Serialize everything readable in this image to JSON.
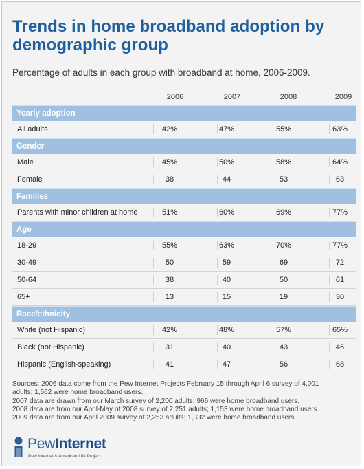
{
  "title": "Trends in home broadband adoption by demographic group",
  "subtitle": "Percentage of adults in each group with broadband at home, 2006-2009.",
  "chart_data": {
    "type": "table",
    "columns": [
      "2006",
      "2007",
      "2008",
      "2009"
    ],
    "sections": [
      {
        "heading": "Yearly adoption",
        "rows": [
          {
            "label": "All adults",
            "values": [
              "42%",
              "47%",
              "55%",
              "63%"
            ]
          }
        ]
      },
      {
        "heading": "Gender",
        "rows": [
          {
            "label": "Male",
            "values": [
              "45%",
              "50%",
              "58%",
              "64%"
            ]
          },
          {
            "label": "Female",
            "values": [
              "38",
              "44",
              "53",
              "63"
            ]
          }
        ]
      },
      {
        "heading": "Families",
        "rows": [
          {
            "label": "Parents with minor children at home",
            "values": [
              "51%",
              "60%",
              "69%",
              "77%"
            ]
          }
        ]
      },
      {
        "heading": "Age",
        "rows": [
          {
            "label": "18-29",
            "values": [
              "55%",
              "63%",
              "70%",
              "77%"
            ]
          },
          {
            "label": "30-49",
            "values": [
              "50",
              "59",
              "69",
              "72"
            ]
          },
          {
            "label": "50-64",
            "values": [
              "38",
              "40",
              "50",
              "61"
            ]
          },
          {
            "label": "65+",
            "values": [
              "13",
              "15",
              "19",
              "30"
            ]
          }
        ]
      },
      {
        "heading": "Race/ethnicity",
        "rows": [
          {
            "label": "White (not Hispanic)",
            "values": [
              "42%",
              "48%",
              "57%",
              "65%"
            ]
          },
          {
            "label": "Black (not Hispanic)",
            "values": [
              "31",
              "40",
              "43",
              "46"
            ]
          },
          {
            "label": "Hispanic (English-speaking)",
            "values": [
              "41",
              "47",
              "56",
              "68"
            ]
          }
        ]
      }
    ]
  },
  "sources": [
    "Sources: 2006 data come from the Pew Internet Projects February 15 through April 6 survey of 4,001",
    "adults; 1,562 were home broadband users.",
    "2007 data are drawn from our March survey of 2,200 adults; 966 were home broadband users.",
    "2008 data are from our April-May of 2008 survey of 2,251 adults; 1,153 were home broadband users.",
    "2009 data are from our April 2009 survey of 2,253 adults; 1,332 were home broadband users."
  ],
  "logo": {
    "name_light": "Pew",
    "name_bold": "Internet",
    "tagline": "Pew Internet & American Life Project"
  },
  "colors": {
    "title": "#1f5f9e",
    "section_band": "#9fc0e0",
    "background": "#f3f3f3"
  }
}
